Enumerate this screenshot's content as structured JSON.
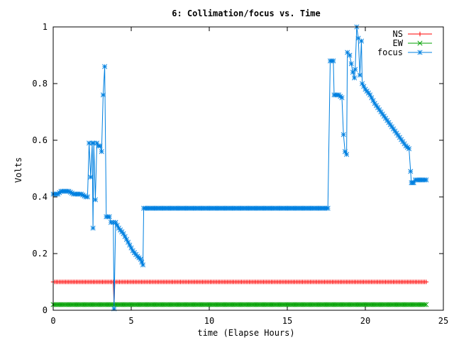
{
  "chart_data": {
    "type": "line",
    "title": "6: Collimation/focus vs. Time",
    "xlabel": "time (Elapse Hours)",
    "ylabel": "Volts",
    "xlim": [
      0,
      25
    ],
    "ylim": [
      0,
      1
    ],
    "x_ticks": [
      "0",
      "5",
      "10",
      "15",
      "20",
      "25"
    ],
    "y_ticks": [
      "0",
      "0.2",
      "0.4",
      "0.6",
      "0.8",
      "1"
    ],
    "grid": false,
    "legend_position": "top-right",
    "series": [
      {
        "name": "NS",
        "color": "#ff0000",
        "marker": "plus",
        "points": [
          [
            0,
            0.1
          ],
          [
            3.85,
            0.1
          ],
          [
            3.9,
            0.02
          ],
          [
            3.95,
            0.1
          ],
          [
            23.9,
            0.1
          ]
        ]
      },
      {
        "name": "EW",
        "color": "#00a000",
        "marker": "cross",
        "points": [
          [
            0,
            0.02
          ],
          [
            23.9,
            0.02
          ]
        ]
      },
      {
        "name": "focus",
        "color": "#0080e0",
        "marker": "star",
        "points": [
          [
            0,
            0.41
          ],
          [
            0.3,
            0.41
          ],
          [
            0.5,
            0.42
          ],
          [
            1.0,
            0.42
          ],
          [
            1.3,
            0.41
          ],
          [
            1.8,
            0.41
          ],
          [
            2.1,
            0.4
          ],
          [
            2.2,
            0.4
          ],
          [
            2.3,
            0.59
          ],
          [
            2.4,
            0.47
          ],
          [
            2.5,
            0.59
          ],
          [
            2.55,
            0.29
          ],
          [
            2.6,
            0.59
          ],
          [
            2.7,
            0.39
          ],
          [
            2.8,
            0.59
          ],
          [
            2.9,
            0.58
          ],
          [
            3.0,
            0.58
          ],
          [
            3.1,
            0.56
          ],
          [
            3.2,
            0.76
          ],
          [
            3.3,
            0.86
          ],
          [
            3.4,
            0.33
          ],
          [
            3.6,
            0.33
          ],
          [
            3.7,
            0.31
          ],
          [
            3.85,
            0.31
          ],
          [
            3.9,
            0.005
          ],
          [
            4.0,
            0.31
          ],
          [
            4.2,
            0.29
          ],
          [
            4.5,
            0.27
          ],
          [
            4.8,
            0.24
          ],
          [
            5.1,
            0.21
          ],
          [
            5.4,
            0.19
          ],
          [
            5.6,
            0.18
          ],
          [
            5.75,
            0.16
          ],
          [
            5.8,
            0.36
          ],
          [
            17.6,
            0.36
          ],
          [
            17.75,
            0.88
          ],
          [
            17.95,
            0.88
          ],
          [
            18.0,
            0.76
          ],
          [
            18.3,
            0.76
          ],
          [
            18.5,
            0.75
          ],
          [
            18.6,
            0.62
          ],
          [
            18.7,
            0.56
          ],
          [
            18.8,
            0.55
          ],
          [
            18.85,
            0.91
          ],
          [
            19.0,
            0.9
          ],
          [
            19.1,
            0.87
          ],
          [
            19.2,
            0.84
          ],
          [
            19.3,
            0.82
          ],
          [
            19.35,
            0.85
          ],
          [
            19.45,
            1.0
          ],
          [
            19.55,
            0.96
          ],
          [
            19.65,
            0.83
          ],
          [
            19.75,
            0.95
          ],
          [
            19.8,
            0.8
          ],
          [
            20.0,
            0.78
          ],
          [
            20.3,
            0.76
          ],
          [
            20.6,
            0.73
          ],
          [
            21.0,
            0.7
          ],
          [
            21.4,
            0.67
          ],
          [
            21.8,
            0.64
          ],
          [
            22.2,
            0.61
          ],
          [
            22.6,
            0.58
          ],
          [
            22.8,
            0.57
          ],
          [
            22.9,
            0.49
          ],
          [
            22.95,
            0.45
          ],
          [
            23.1,
            0.45
          ],
          [
            23.2,
            0.46
          ],
          [
            23.5,
            0.46
          ],
          [
            23.9,
            0.46
          ]
        ]
      }
    ]
  }
}
